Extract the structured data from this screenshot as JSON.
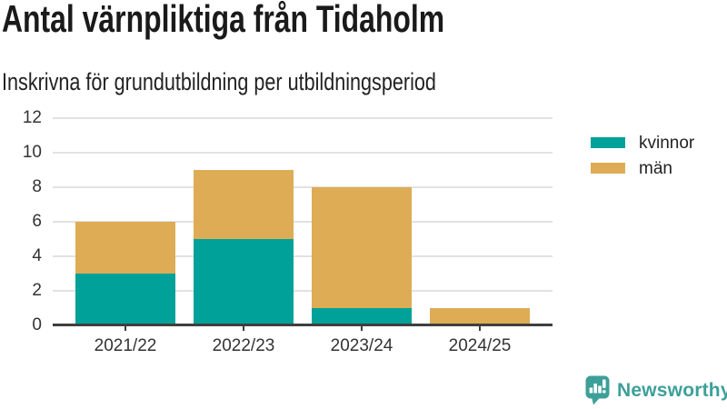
{
  "header": {
    "title": "Antal värnpliktiga från Tidaholm",
    "subtitle": "Inskrivna för grundutbildning per utbildningsperiod"
  },
  "chart_data": {
    "type": "bar",
    "stacked": true,
    "title": "Antal värnpliktiga från Tidaholm",
    "subtitle": "Inskrivna för grundutbildning per utbildningsperiod",
    "categories": [
      "2021/22",
      "2022/23",
      "2023/24",
      "2024/25"
    ],
    "series": [
      {
        "name": "kvinnor",
        "color": "#00a199",
        "values": [
          3,
          5,
          1,
          0
        ]
      },
      {
        "name": "män",
        "color": "#ddac55",
        "values": [
          3,
          4,
          7,
          1
        ]
      }
    ],
    "totals": [
      6,
      9,
      8,
      1
    ],
    "xlabel": "",
    "ylabel": "",
    "ylim": [
      0,
      12
    ],
    "yticks": [
      0,
      2,
      4,
      6,
      8,
      10,
      12
    ],
    "grid": "horizontal",
    "legend_position": "right"
  },
  "branding": {
    "logo_text": "Newsworthy",
    "logo_color": "#3d9f99"
  },
  "style": {
    "grid_color": "#e2e2e2",
    "axis_color": "#3f3f3f",
    "label_color": "#333333"
  }
}
